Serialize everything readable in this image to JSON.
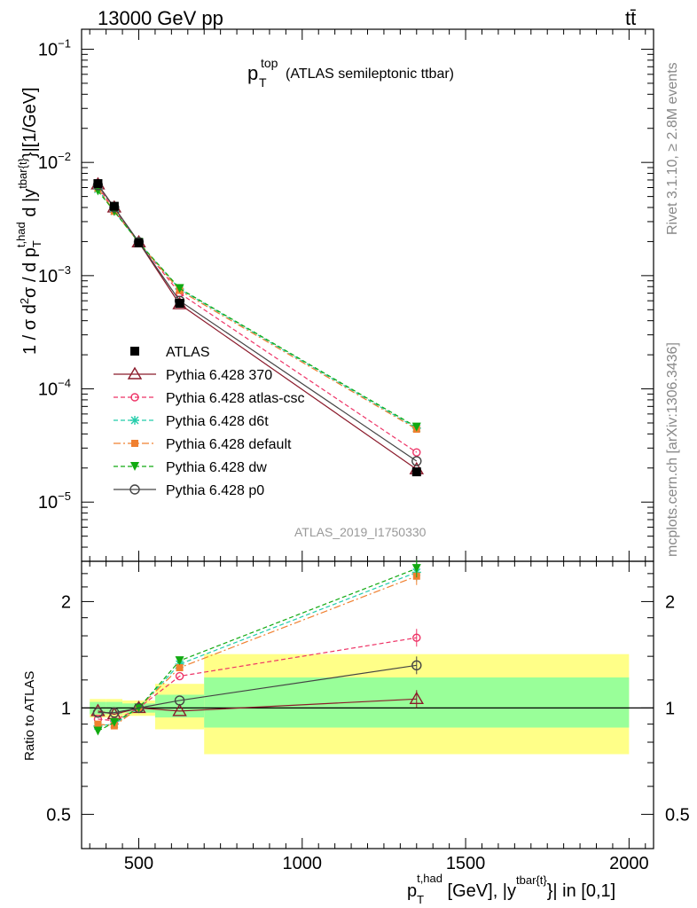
{
  "header": {
    "left": "13000 GeV pp",
    "right": "tt̄"
  },
  "side_labels": {
    "rivet": "Rivet 3.1.10, ≥ 2.8M events",
    "mcplots": "mcplots.cern.ch [arXiv:1306.3436]"
  },
  "plot_title": {
    "main": "p",
    "sup": "top",
    "sub": "T",
    "rest": "(ATLAS semileptonic ttbar)"
  },
  "analysis_id": "ATLAS_2019_I1750330",
  "ylabel_top": "1 / σ d²σ / d p_T^{t,had} d |y^{tbar{t}}|[1/GeV]",
  "ylabel_bottom": "Ratio to ATLAS",
  "xlabel": "p_T^{t,had} [GeV], |y^{tbar{t}}| in [0,1]",
  "colors": {
    "atlas": "#000000",
    "p370": "#8b1a2b",
    "atlascsc": "#ee3366",
    "d6t": "#22ccaa",
    "default": "#f08030",
    "dw": "#11aa11",
    "p0": "#444444",
    "band_inner": "#99ff99",
    "band_outer": "#ffff88"
  },
  "chart_data": [
    {
      "type": "line",
      "panel": "main",
      "yscale": "log",
      "xlim": [
        325,
        2075
      ],
      "ylim": [
        3e-06,
        0.15
      ],
      "x_ticks": [
        500,
        1000,
        1500,
        2000
      ],
      "y_ticks": [
        "10^-5",
        "10^-4",
        "10^-3",
        "10^-2",
        "10^-1"
      ],
      "x": [
        375,
        425,
        500,
        625,
        1350
      ],
      "series": [
        {
          "name": "ATLAS",
          "key": "atlas",
          "values": [
            0.0065,
            0.0041,
            0.00195,
            0.00057,
            1.85e-05
          ]
        },
        {
          "name": "Pythia 6.428 370",
          "key": "p370",
          "values": [
            0.0064,
            0.004,
            0.00197,
            0.00056,
            1.95e-05
          ]
        },
        {
          "name": "Pythia 6.428 atlas-csc",
          "key": "atlascsc",
          "values": [
            0.0061,
            0.0038,
            0.00196,
            0.0007,
            2.75e-05
          ]
        },
        {
          "name": "Pythia 6.428 d6t",
          "key": "d6t",
          "values": [
            0.0058,
            0.0037,
            0.00196,
            0.00076,
            4.5e-05
          ]
        },
        {
          "name": "Pythia 6.428 default",
          "key": "default",
          "values": [
            0.0059,
            0.0037,
            0.00196,
            0.00074,
            4.4e-05
          ]
        },
        {
          "name": "Pythia 6.428 dw",
          "key": "dw",
          "values": [
            0.0056,
            0.0037,
            0.00197,
            0.00077,
            4.6e-05
          ]
        },
        {
          "name": "Pythia 6.428 p0",
          "key": "p0",
          "values": [
            0.0063,
            0.004,
            0.00198,
            0.0006,
            2.3e-05
          ]
        }
      ]
    },
    {
      "type": "line",
      "panel": "ratio",
      "yscale": "log",
      "xlim": [
        325,
        2075
      ],
      "ylim": [
        0.4,
        2.6
      ],
      "y_ticks": [
        0.5,
        1,
        2
      ],
      "x": [
        375,
        425,
        500,
        625,
        1350
      ],
      "uncertainty_bands": [
        {
          "x_range": [
            350,
            400
          ],
          "inner": [
            0.96,
            1.04
          ],
          "outer": [
            0.94,
            1.06
          ]
        },
        {
          "x_range": [
            400,
            450
          ],
          "inner": [
            0.96,
            1.04
          ],
          "outer": [
            0.94,
            1.06
          ]
        },
        {
          "x_range": [
            450,
            550
          ],
          "inner": [
            0.97,
            1.03
          ],
          "outer": [
            0.95,
            1.05
          ]
        },
        {
          "x_range": [
            550,
            700
          ],
          "inner": [
            0.94,
            1.09
          ],
          "outer": [
            0.87,
            1.17
          ]
        },
        {
          "x_range": [
            700,
            2000
          ],
          "inner": [
            0.88,
            1.22
          ],
          "outer": [
            0.74,
            1.42
          ]
        }
      ],
      "series": [
        {
          "name": "Pythia 6.428 370",
          "key": "p370",
          "values": [
            0.98,
            0.96,
            1.0,
            0.98,
            1.06
          ]
        },
        {
          "name": "Pythia 6.428 atlas-csc",
          "key": "atlascsc",
          "values": [
            0.93,
            0.92,
            1.0,
            1.23,
            1.58
          ]
        },
        {
          "name": "Pythia 6.428 d6t",
          "key": "d6t",
          "values": [
            0.89,
            0.9,
            1.0,
            1.33,
            2.42
          ]
        },
        {
          "name": "Pythia 6.428 default",
          "key": "default",
          "values": [
            0.9,
            0.89,
            1.0,
            1.3,
            2.36
          ]
        },
        {
          "name": "Pythia 6.428 dw",
          "key": "dw",
          "values": [
            0.86,
            0.91,
            1.0,
            1.36,
            2.48
          ]
        },
        {
          "name": "Pythia 6.428 p0",
          "key": "p0",
          "values": [
            0.97,
            0.97,
            1.0,
            1.05,
            1.32
          ]
        }
      ]
    }
  ]
}
